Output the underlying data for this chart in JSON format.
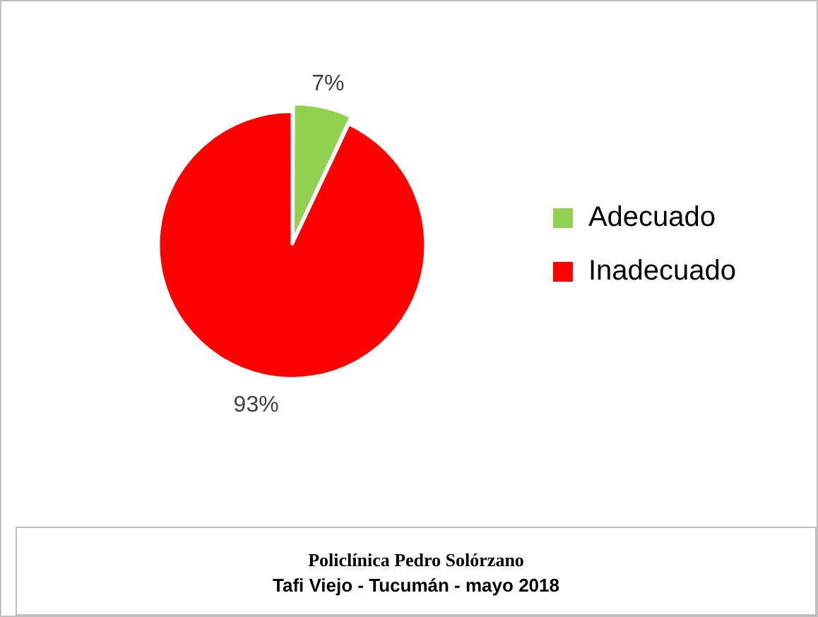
{
  "chart_data": {
    "type": "pie",
    "categories": [
      "Adecuado",
      "Inadecuado"
    ],
    "values": [
      7,
      93
    ],
    "colors": [
      "#92d050",
      "#ff0000"
    ],
    "value_labels": [
      "7%",
      "93%"
    ],
    "legend": "right",
    "annotations": [
      "Policlínica Pedro Solórzano",
      "Tafi Viejo - Tucumán - mayo 2018"
    ]
  }
}
